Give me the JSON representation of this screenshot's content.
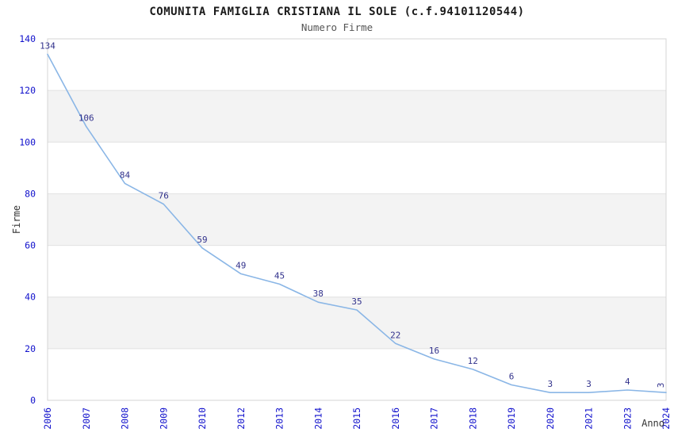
{
  "chart_data": {
    "type": "line",
    "title": "COMUNITA FAMIGLIA CRISTIANA IL SOLE (c.f.94101120544)",
    "subtitle": "Numero Firme",
    "xlabel": "Anno",
    "ylabel": "Firme",
    "categories": [
      "2006",
      "2007",
      "2008",
      "2009",
      "2010",
      "2012",
      "2013",
      "2014",
      "2015",
      "2016",
      "2017",
      "2018",
      "2019",
      "2020",
      "2021",
      "2023",
      "2024"
    ],
    "values": [
      134,
      106,
      84,
      76,
      59,
      49,
      45,
      38,
      35,
      22,
      16,
      12,
      6,
      3,
      3,
      4,
      3
    ],
    "ylim": [
      0,
      140
    ],
    "yticks": [
      0,
      20,
      40,
      60,
      80,
      100,
      120,
      140
    ],
    "grid": true,
    "legend_position": "none",
    "band_fill": "on",
    "colors": {
      "line": "#8ab6e6",
      "data_label": "#32328c",
      "tick_label": "#1111cc",
      "axis_title": "#333333",
      "gridline": "#e2e2e2",
      "band": "#f3f3f3",
      "plot_border": "#d4d4d4",
      "background": "#ffffff"
    }
  }
}
